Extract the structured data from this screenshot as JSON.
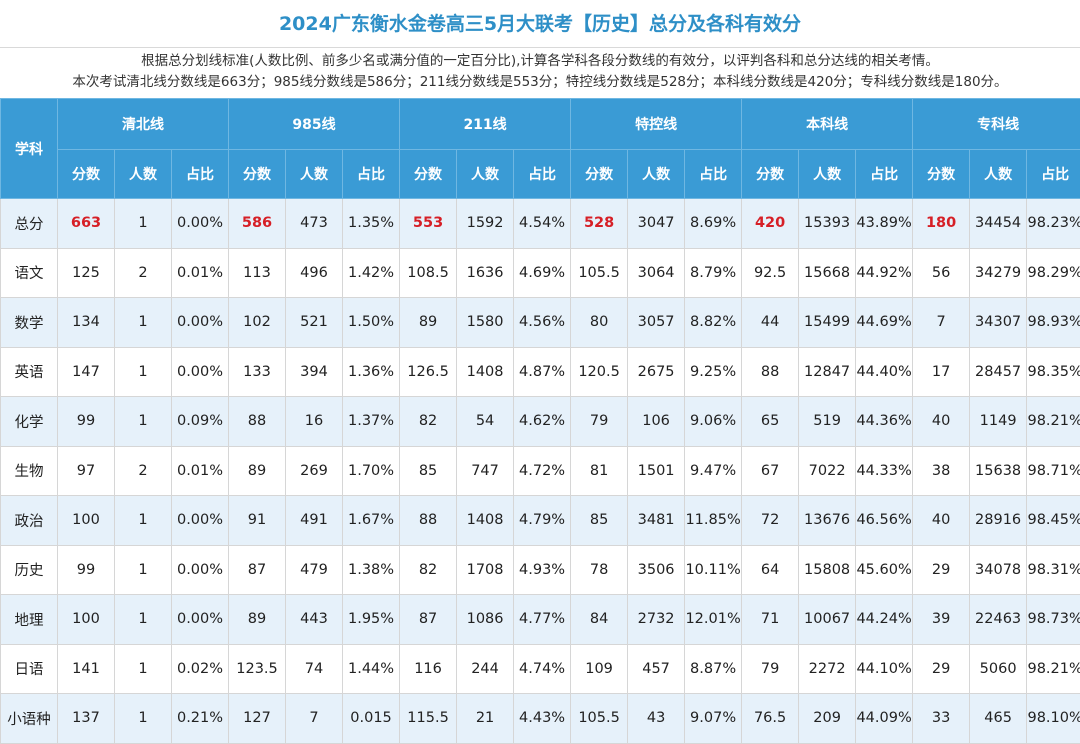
{
  "title": "2024广东衡水金卷高三5月大联考【历史】总分及各科有效分",
  "description": [
    "根据总分划线标准(人数比例、前多少名或满分值的一定百分比),计算各学科各段分数线的有效分，以评判各科和总分达线的相关考情。",
    "本次考试清北线分数线是663分；985线分数线是586分；211线分数线是553分；特控线分数线是528分；本科线分数线是420分；专科线分数线是180分。"
  ],
  "table": {
    "subject_header": "学科",
    "groups": [
      "清北线",
      "985线",
      "211线",
      "特控线",
      "本科线",
      "专科线"
    ],
    "sub_headers": [
      "分数",
      "人数",
      "占比"
    ],
    "rows": [
      [
        "总分",
        "663",
        "1",
        "0.00%",
        "586",
        "473",
        "1.35%",
        "553",
        "1592",
        "4.54%",
        "528",
        "3047",
        "8.69%",
        "420",
        "15393",
        "43.89%",
        "180",
        "34454",
        "98.23%"
      ],
      [
        "语文",
        "125",
        "2",
        "0.01%",
        "113",
        "496",
        "1.42%",
        "108.5",
        "1636",
        "4.69%",
        "105.5",
        "3064",
        "8.79%",
        "92.5",
        "15668",
        "44.92%",
        "56",
        "34279",
        "98.29%"
      ],
      [
        "数学",
        "134",
        "1",
        "0.00%",
        "102",
        "521",
        "1.50%",
        "89",
        "1580",
        "4.56%",
        "80",
        "3057",
        "8.82%",
        "44",
        "15499",
        "44.69%",
        "7",
        "34307",
        "98.93%"
      ],
      [
        "英语",
        "147",
        "1",
        "0.00%",
        "133",
        "394",
        "1.36%",
        "126.5",
        "1408",
        "4.87%",
        "120.5",
        "2675",
        "9.25%",
        "88",
        "12847",
        "44.40%",
        "17",
        "28457",
        "98.35%"
      ],
      [
        "化学",
        "99",
        "1",
        "0.09%",
        "88",
        "16",
        "1.37%",
        "82",
        "54",
        "4.62%",
        "79",
        "106",
        "9.06%",
        "65",
        "519",
        "44.36%",
        "40",
        "1149",
        "98.21%"
      ],
      [
        "生物",
        "97",
        "2",
        "0.01%",
        "89",
        "269",
        "1.70%",
        "85",
        "747",
        "4.72%",
        "81",
        "1501",
        "9.47%",
        "67",
        "7022",
        "44.33%",
        "38",
        "15638",
        "98.71%"
      ],
      [
        "政治",
        "100",
        "1",
        "0.00%",
        "91",
        "491",
        "1.67%",
        "88",
        "1408",
        "4.79%",
        "85",
        "3481",
        "11.85%",
        "72",
        "13676",
        "46.56%",
        "40",
        "28916",
        "98.45%"
      ],
      [
        "历史",
        "99",
        "1",
        "0.00%",
        "87",
        "479",
        "1.38%",
        "82",
        "1708",
        "4.93%",
        "78",
        "3506",
        "10.11%",
        "64",
        "15808",
        "45.60%",
        "29",
        "34078",
        "98.31%"
      ],
      [
        "地理",
        "100",
        "1",
        "0.00%",
        "89",
        "443",
        "1.95%",
        "87",
        "1086",
        "4.77%",
        "84",
        "2732",
        "12.01%",
        "71",
        "10067",
        "44.24%",
        "39",
        "22463",
        "98.73%"
      ],
      [
        "日语",
        "141",
        "1",
        "0.02%",
        "123.5",
        "74",
        "1.44%",
        "116",
        "244",
        "4.74%",
        "109",
        "457",
        "8.87%",
        "79",
        "2272",
        "44.10%",
        "29",
        "5060",
        "98.21%"
      ],
      [
        "小语种",
        "137",
        "1",
        "0.21%",
        "127",
        "7",
        "0.015",
        "115.5",
        "21",
        "4.43%",
        "105.5",
        "43",
        "9.07%",
        "76.5",
        "209",
        "44.09%",
        "33",
        "465",
        "98.10%"
      ]
    ]
  },
  "colors": {
    "title": "#2e8fc7",
    "header_bg": "#3a9bd5",
    "stripe": "#e6f1fa",
    "highlight": "#d61f26"
  }
}
